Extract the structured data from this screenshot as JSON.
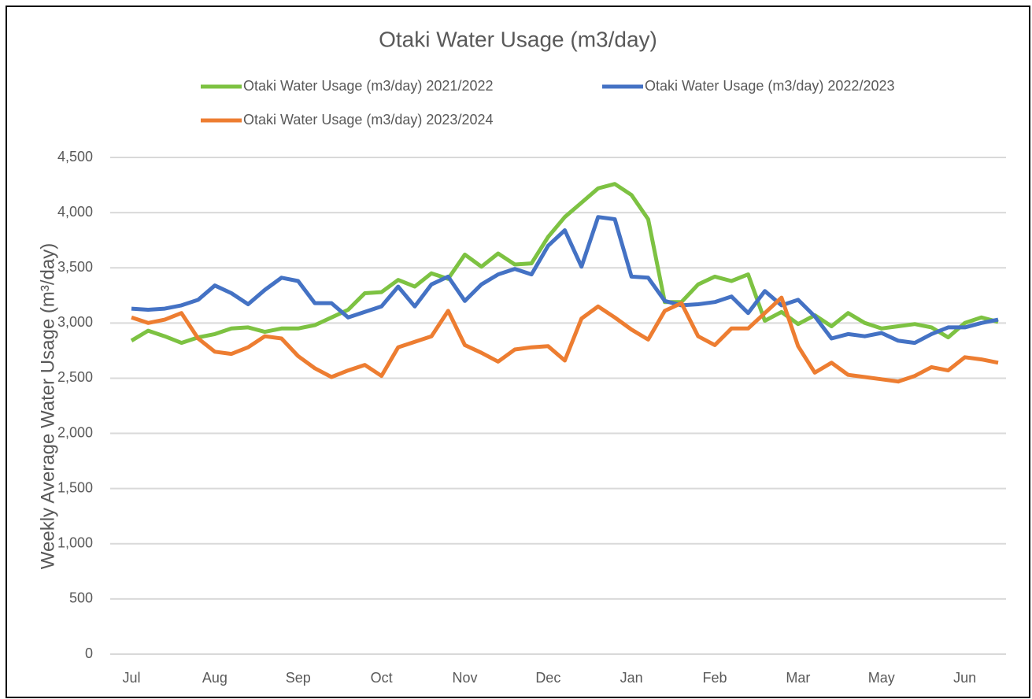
{
  "chart_data": {
    "type": "line",
    "title": "Otaki Water Usage (m3/day)",
    "y_label": "Weekly Average Water Usage (m³/day)",
    "categories": [
      "Jul",
      null,
      null,
      null,
      null,
      "Aug",
      null,
      null,
      null,
      null,
      "Sep",
      null,
      null,
      null,
      null,
      "Oct",
      null,
      null,
      null,
      null,
      "Nov",
      null,
      null,
      null,
      null,
      "Dec",
      null,
      null,
      null,
      null,
      "Jan",
      null,
      null,
      null,
      null,
      "Feb",
      null,
      null,
      null,
      null,
      "Mar",
      null,
      null,
      null,
      null,
      "May",
      null,
      null,
      null,
      null,
      "Jun",
      null,
      null
    ],
    "series": [
      {
        "name": "Otaki Water Usage (m3/day) 2021/2022",
        "color": "#7dc242",
        "values": [
          2840,
          2930,
          2880,
          2820,
          2870,
          2900,
          2950,
          2960,
          2920,
          2950,
          2950,
          2980,
          3050,
          3120,
          3270,
          3280,
          3390,
          3330,
          3450,
          3400,
          3620,
          3510,
          3630,
          3530,
          3540,
          3780,
          3960,
          4090,
          4220,
          4260,
          4160,
          3940,
          3190,
          3190,
          3350,
          3420,
          3380,
          3440,
          3020,
          3100,
          2990,
          3070,
          2970,
          3090,
          3000,
          2950,
          2970,
          2990,
          2960,
          2870,
          3000,
          3050,
          3010
        ]
      },
      {
        "name": "Otaki Water Usage (m3/day) 2022/2023",
        "color": "#4472c4",
        "values": [
          3130,
          3120,
          3130,
          3160,
          3210,
          3340,
          3270,
          3170,
          3300,
          3410,
          3380,
          3180,
          3180,
          3050,
          3100,
          3150,
          3330,
          3150,
          3350,
          3420,
          3200,
          3350,
          3440,
          3490,
          3440,
          3700,
          3840,
          3510,
          3960,
          3940,
          3420,
          3410,
          3200,
          3160,
          3170,
          3190,
          3240,
          3090,
          3290,
          3160,
          3210,
          3060,
          2860,
          2900,
          2880,
          2910,
          2840,
          2820,
          2900,
          2960,
          2960,
          3000,
          3030
        ]
      },
      {
        "name": "Otaki Water Usage (m3/day) 2023/2024",
        "color": "#ed7d31",
        "values": [
          3050,
          3000,
          3030,
          3090,
          2860,
          2740,
          2720,
          2780,
          2880,
          2860,
          2700,
          2590,
          2510,
          2570,
          2620,
          2520,
          2780,
          2830,
          2880,
          3110,
          2800,
          2730,
          2650,
          2760,
          2780,
          2790,
          2660,
          3040,
          3150,
          3050,
          2940,
          2850,
          3110,
          3180,
          2880,
          2800,
          2950,
          2950,
          3090,
          3230,
          2790,
          2550,
          2640,
          2530,
          2510,
          2490,
          2470,
          2520,
          2600,
          2570,
          2690,
          2670,
          2640
        ]
      }
    ],
    "ylim": [
      0,
      4500
    ],
    "yticks": [
      0,
      500,
      {
        "value": 1000,
        "label": "1,000"
      },
      {
        "value": 1500,
        "label": "1,500"
      },
      {
        "value": 2000,
        "label": "2,000"
      },
      {
        "value": 2500,
        "label": "2,500"
      },
      {
        "value": 3000,
        "label": "3,000"
      },
      {
        "value": 3500,
        "label": "3,500"
      },
      {
        "value": 4000,
        "label": "4,000"
      },
      {
        "value": 4500,
        "label": "4,500"
      }
    ],
    "grid": true,
    "legend": "top"
  }
}
